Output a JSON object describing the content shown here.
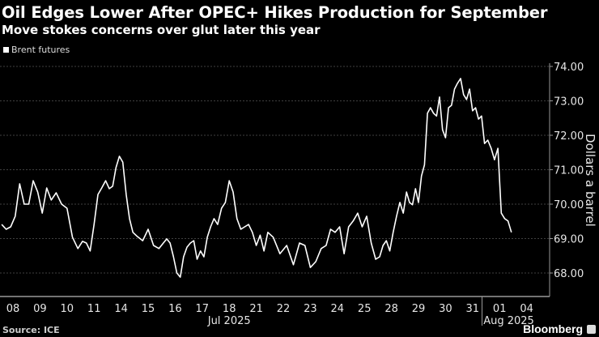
{
  "header": {
    "title": "Oil Edges Lower After OPEC+ Hikes Production for September",
    "subtitle": "Move stokes concerns over glut later this year"
  },
  "footer": {
    "source": "Source: ICE",
    "brand": "Bloomberg"
  },
  "chart_data": {
    "type": "line",
    "title": "Oil Edges Lower After OPEC+ Hikes Production for September",
    "subtitle": "Move stokes concerns over glut later this year",
    "ylabel": "Dollars a barrel",
    "xlabel": "",
    "ylim": [
      67.3,
      74.0
    ],
    "y_ticks": [
      "68.00",
      "69.00",
      "70.00",
      "71.00",
      "72.00",
      "73.00",
      "74.00"
    ],
    "y_tick_values": [
      68,
      69,
      70,
      71,
      72,
      73,
      74
    ],
    "y_axis_side": "right",
    "grid": true,
    "legend_position": "top-left",
    "x_tick_labels": [
      "08",
      "09",
      "10",
      "11",
      "14",
      "15",
      "16",
      "17",
      "18",
      "21",
      "22",
      "23",
      "24",
      "25",
      "28",
      "29",
      "30",
      "31",
      "01",
      "04"
    ],
    "x_month_labels": [
      {
        "label": "Jul 2025",
        "at": "18"
      },
      {
        "label": "Aug 2025",
        "at": "01"
      }
    ],
    "line_color": "#ffffff",
    "series": [
      {
        "name": "Brent futures",
        "days": [
          {
            "date": "2025-07-08",
            "values": [
              69.41,
              69.27,
              69.34,
              69.65,
              70.59,
              70.0
            ]
          },
          {
            "date": "2025-07-09",
            "values": [
              70.0,
              70.68,
              70.35,
              69.74,
              70.47,
              70.12
            ]
          },
          {
            "date": "2025-07-10",
            "values": [
              70.33,
              70.0,
              69.88,
              69.04,
              68.71
            ]
          },
          {
            "date": "2025-07-11",
            "values": [
              68.92,
              68.87,
              68.64,
              69.41,
              70.28,
              70.47,
              70.68
            ]
          },
          {
            "date": "2025-07-14",
            "values": [
              70.45,
              70.52,
              71.06,
              71.39,
              71.22,
              70.28,
              69.58,
              69.18
            ]
          },
          {
            "date": "2025-07-15",
            "values": [
              69.06,
              68.94,
              69.27,
              68.8,
              68.71
            ]
          },
          {
            "date": "2025-07-16",
            "values": [
              68.87,
              68.99,
              68.87,
              68.47,
              68.0,
              67.88,
              68.47,
              68.75
            ]
          },
          {
            "date": "2025-07-17",
            "values": [
              68.87,
              68.94,
              68.4,
              68.64,
              68.47,
              69.04,
              69.34,
              69.58
            ]
          },
          {
            "date": "2025-07-18",
            "values": [
              69.41,
              69.88,
              70.05,
              70.68,
              70.35,
              69.58,
              69.27
            ]
          },
          {
            "date": "2025-07-21",
            "values": [
              69.34,
              69.41,
              69.18,
              68.8,
              69.1,
              68.64,
              69.18
            ]
          },
          {
            "date": "2025-07-22",
            "values": [
              69.04,
              68.56,
              68.8,
              68.24
            ]
          },
          {
            "date": "2025-07-23",
            "values": [
              68.87,
              68.8,
              68.16,
              68.33,
              68.71
            ]
          },
          {
            "date": "2025-07-24",
            "values": [
              68.8,
              69.27,
              69.18,
              69.34,
              68.56,
              69.34
            ]
          },
          {
            "date": "2025-07-25",
            "values": [
              69.51,
              69.74,
              69.34,
              69.65,
              68.87,
              68.4
            ]
          },
          {
            "date": "2025-07-28",
            "values": [
              68.47,
              68.8,
              68.94,
              68.64,
              69.18,
              69.65,
              70.05,
              69.74
            ]
          },
          {
            "date": "2025-07-29",
            "values": [
              70.35,
              70.05,
              69.98,
              70.45,
              70.05,
              70.82,
              71.14,
              72.64,
              72.8
            ]
          },
          {
            "date": "2025-07-30",
            "values": [
              72.64,
              72.56,
              73.11,
              72.16,
              71.93,
              72.8,
              72.87,
              73.34,
              73.51
            ]
          },
          {
            "date": "2025-07-31",
            "values": [
              73.65,
              73.18,
              73.04,
              73.34,
              72.71,
              72.8,
              72.47,
              72.56,
              71.76
            ]
          },
          {
            "date": "2025-08-01",
            "values": [
              71.86,
              71.62,
              71.29,
              71.62,
              69.74,
              69.58,
              69.51,
              69.18
            ]
          }
        ]
      }
    ]
  }
}
